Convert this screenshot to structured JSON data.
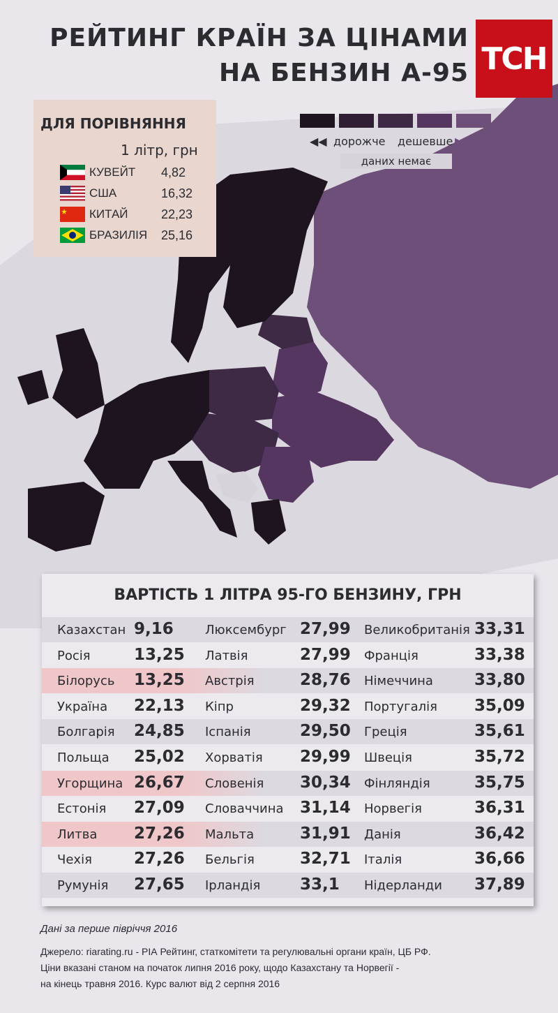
{
  "title": {
    "line1": "РЕЙТИНГ КРАЇН ЗА ЦІНАМИ",
    "line2": "НА БЕНЗИН А-95"
  },
  "logo": {
    "text": "ТСН",
    "color": "#c8101a"
  },
  "comparison": {
    "heading": "ДЛЯ ПОРІВНЯННЯ",
    "unit": "1 літр, грн",
    "rows": [
      {
        "country": "КУВЕЙТ",
        "value": "4,82",
        "flag": "kuwait-flag"
      },
      {
        "country": "США",
        "value": "16,32",
        "flag": "usa-flag"
      },
      {
        "country": "КИТАЙ",
        "value": "22,23",
        "flag": "china-flag"
      },
      {
        "country": "БРАЗИЛІЯ",
        "value": "25,16",
        "flag": "brazil-flag"
      }
    ]
  },
  "legend": {
    "colors": [
      "#1e1420",
      "#2f1e34",
      "#3e2a45",
      "#553660",
      "#6e4f7a"
    ],
    "more_expensive": "дорожче",
    "cheaper": "дешевше",
    "no_data": "даних немає",
    "no_data_color": "#d8d3da"
  },
  "table": {
    "title": "ВАРТІСТЬ 1 ЛІТРА 95-ГО БЕНЗИНУ, ГРН",
    "columns": [
      [
        {
          "country": "Казахстан",
          "value": "9,16"
        },
        {
          "country": "Росія",
          "value": "13,25"
        },
        {
          "country": "Білорусь",
          "value": "13,25"
        },
        {
          "country": "Україна",
          "value": "22,13"
        },
        {
          "country": "Болгарія",
          "value": "24,85"
        },
        {
          "country": "Польща",
          "value": "25,02"
        },
        {
          "country": "Угорщина",
          "value": "26,67"
        },
        {
          "country": "Естонія",
          "value": "27,09"
        },
        {
          "country": "Литва",
          "value": "27,26"
        },
        {
          "country": "Чехія",
          "value": "27,26"
        },
        {
          "country": "Румунія",
          "value": "27,65"
        }
      ],
      [
        {
          "country": "Люксембург",
          "value": "27,99"
        },
        {
          "country": "Латвія",
          "value": "27,99"
        },
        {
          "country": "Австрія",
          "value": "28,76"
        },
        {
          "country": "Кіпр",
          "value": "29,32"
        },
        {
          "country": "Іспанія",
          "value": "29,50"
        },
        {
          "country": "Хорватія",
          "value": "29,99"
        },
        {
          "country": "Словенія",
          "value": "30,34"
        },
        {
          "country": "Словаччина",
          "value": "31,14"
        },
        {
          "country": "Мальта",
          "value": "31,91"
        },
        {
          "country": "Бельгія",
          "value": "32,71"
        },
        {
          "country": "Ірландія",
          "value": "33,1"
        }
      ],
      [
        {
          "country": "Великобританія",
          "value": "33,31"
        },
        {
          "country": "Франція",
          "value": "33,38"
        },
        {
          "country": "Німеччина",
          "value": "33,80"
        },
        {
          "country": "Португалія",
          "value": "35,09"
        },
        {
          "country": "Греція",
          "value": "35,61"
        },
        {
          "country": "Швеція",
          "value": "35,72"
        },
        {
          "country": "Фінляндія",
          "value": "35,75"
        },
        {
          "country": "Норвегія",
          "value": "36,31"
        },
        {
          "country": "Данія",
          "value": "36,42"
        },
        {
          "country": "Італія",
          "value": "36,66"
        },
        {
          "country": "Нідерланди",
          "value": "37,89"
        }
      ]
    ]
  },
  "footer": {
    "period": "Дані за перше півріччя 2016",
    "source": "Джерело: riarating.ru - РІА Рейтинг, статкомітети та регулювальні органи країн, ЦБ РФ.",
    "note1": "Ціни вказані станом на початок липня 2016 року, щодо Казахстану та Норвегії -",
    "note2": "на кінець травня 2016. Курс валют від 2 серпня 2016"
  }
}
